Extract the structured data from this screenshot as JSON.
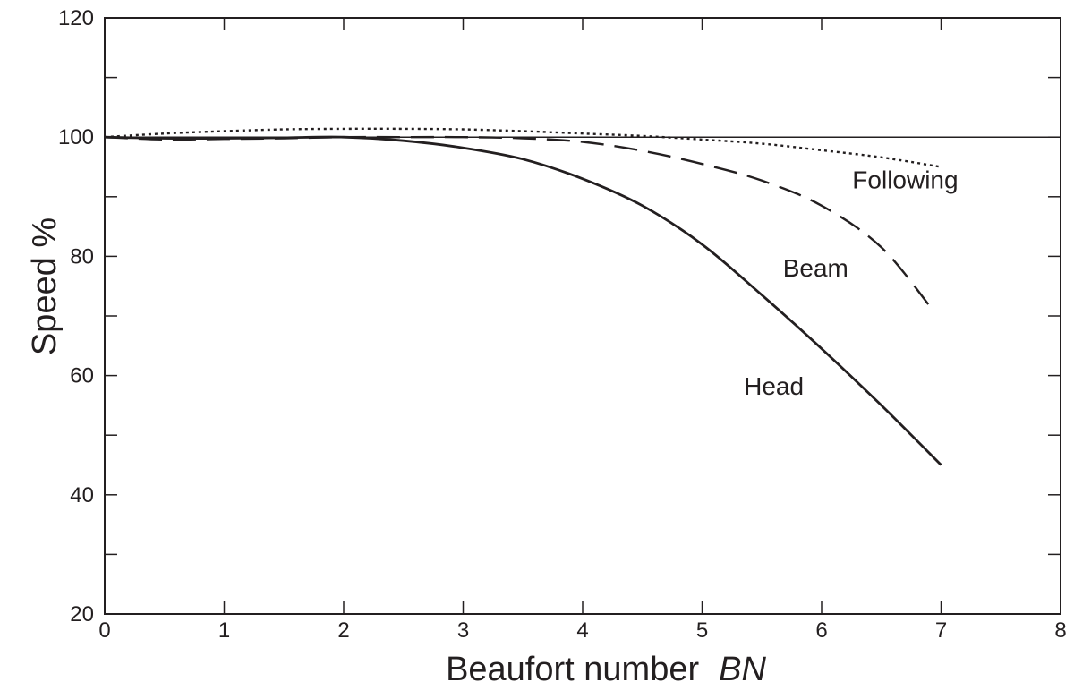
{
  "chart_data": {
    "type": "line",
    "xlabel": "Beaufort number",
    "xlabel_symbol": "BN",
    "ylabel": "Speed %",
    "xlim": [
      0,
      8
    ],
    "ylim": [
      20,
      120
    ],
    "x_ticks": [
      0,
      1,
      2,
      3,
      4,
      5,
      6,
      7,
      8
    ],
    "y_tick_labels": [
      20,
      40,
      60,
      80,
      100,
      120
    ],
    "y_minor_ticks": [
      30,
      50,
      70,
      90,
      110
    ],
    "grid": false,
    "reference_line": {
      "y": 100
    },
    "series": [
      {
        "name": "Following",
        "style": "dotted",
        "color": "#231f20",
        "x": [
          0,
          0.5,
          1,
          1.5,
          2,
          2.5,
          3,
          3.5,
          4,
          4.5,
          5,
          5.5,
          6,
          6.5,
          7
        ],
        "values": [
          100,
          100.6,
          101.0,
          101.3,
          101.4,
          101.4,
          101.3,
          101.0,
          100.6,
          100.2,
          99.6,
          98.9,
          97.8,
          96.6,
          95.0
        ]
      },
      {
        "name": "Beam",
        "style": "dashed",
        "color": "#231f20",
        "x": [
          0,
          0.5,
          1,
          1.5,
          2,
          2.5,
          3,
          3.5,
          4,
          4.5,
          5,
          5.5,
          6,
          6.5,
          6.93
        ],
        "values": [
          100,
          99.6,
          99.7,
          99.8,
          100,
          100,
          100,
          99.8,
          99.2,
          97.7,
          95.5,
          92.7,
          88.5,
          81.5,
          71.0
        ]
      },
      {
        "name": "Head",
        "style": "solid",
        "color": "#231f20",
        "x": [
          0,
          0.5,
          1,
          1.5,
          2,
          2.5,
          3,
          3.5,
          4,
          4.5,
          5,
          5.5,
          6,
          6.5,
          7
        ],
        "values": [
          100,
          99.8,
          99.8,
          99.9,
          100,
          99.4,
          98.2,
          96.3,
          93.0,
          88.5,
          82.0,
          73.5,
          64.5,
          55.0,
          45.0
        ]
      }
    ],
    "annotations": [
      {
        "text": "Following",
        "x": 6.7,
        "y": 91.4
      },
      {
        "text": "Beam",
        "x": 5.95,
        "y": 76.6
      },
      {
        "text": "Head",
        "x": 5.6,
        "y": 56.8
      }
    ]
  }
}
